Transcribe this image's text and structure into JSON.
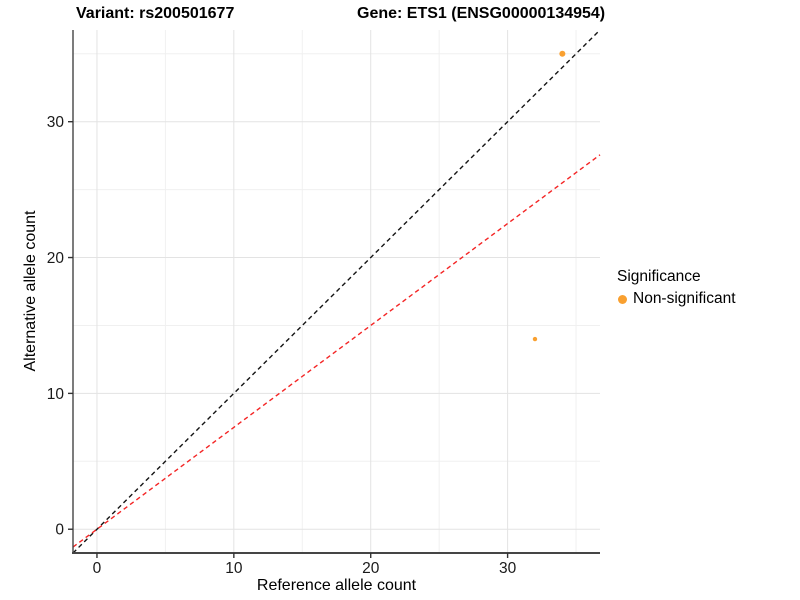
{
  "figure": {
    "title_left": "Variant: rs200501677",
    "title_right": "Gene: ETS1 (ENSG00000134954)"
  },
  "chart_data": {
    "type": "scatter",
    "title": "Variant: rs200501677   Gene: ETS1 (ENSG00000134954)",
    "xlabel": "Reference allele count",
    "ylabel": "Alternative allele count",
    "xlim": [
      -1.75,
      36.75
    ],
    "ylim": [
      -1.75,
      36.75
    ],
    "xticks": [
      0,
      10,
      20,
      30
    ],
    "yticks": [
      0,
      10,
      20,
      30
    ],
    "minor_xticks": [
      5,
      15,
      25,
      35
    ],
    "minor_yticks": [
      5,
      15,
      25,
      35
    ],
    "grid": true,
    "series": [
      {
        "name": "Non-significant",
        "color": "#F9A030",
        "points": [
          {
            "x": 34,
            "y": 35,
            "r": 3.0
          },
          {
            "x": 32,
            "y": 14,
            "r": 2.2
          }
        ]
      }
    ],
    "lines": [
      {
        "name": "identity",
        "slope": 1,
        "intercept": 0,
        "color": "#141414",
        "style": "dashed"
      },
      {
        "name": "ratio-0.75",
        "slope": 0.75,
        "intercept": 0,
        "color": "#F42525",
        "style": "dashed"
      }
    ],
    "legend": {
      "title": "Significance",
      "position": "right",
      "items": [
        {
          "label": "Non-significant",
          "color": "#F9A030"
        }
      ]
    }
  },
  "style": {
    "grid_major": "#E3E3E3",
    "grid_minor": "#F0F0F0",
    "axis_line": "#454545",
    "tick_color": "#333333",
    "tick_label_color": "#1A1A1A"
  }
}
